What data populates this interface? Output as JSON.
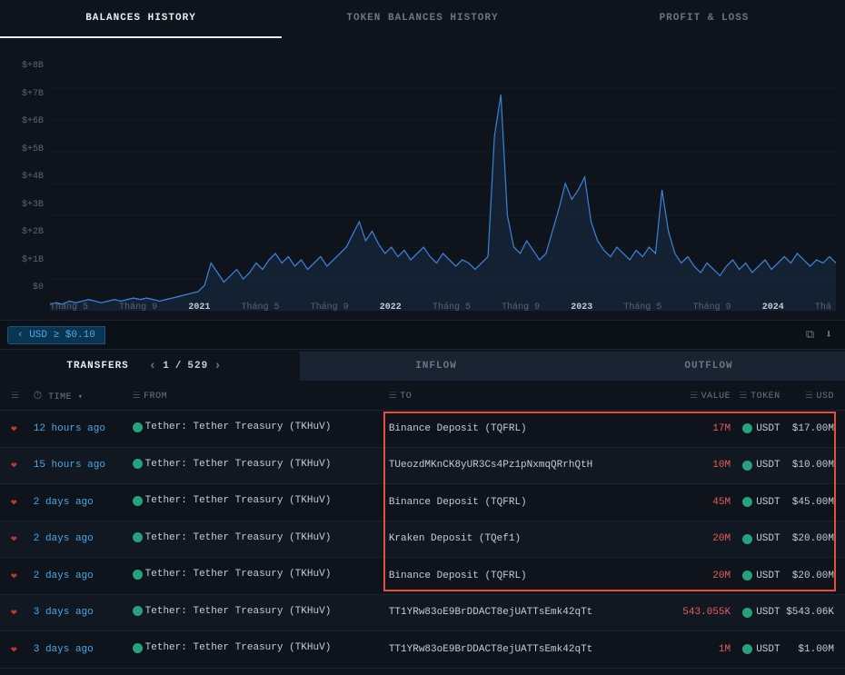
{
  "tabs": {
    "balances_history": "BALANCES HISTORY",
    "token_balances_history": "TOKEN BALANCES HISTORY",
    "profit_loss": "PROFIT & LOSS"
  },
  "chart": {
    "type": "area",
    "y_ticks": [
      "$+8B",
      "$+7B",
      "$+6B",
      "$+5B",
      "$+4B",
      "$+3B",
      "$+2B",
      "$+1B",
      "$0"
    ],
    "x_ticks": [
      {
        "label": "Tháng 5",
        "bold": false
      },
      {
        "label": "Tháng 9",
        "bold": false
      },
      {
        "label": "2021",
        "bold": true
      },
      {
        "label": "Tháng 5",
        "bold": false
      },
      {
        "label": "Tháng 9",
        "bold": false
      },
      {
        "label": "2022",
        "bold": true
      },
      {
        "label": "Tháng 5",
        "bold": false
      },
      {
        "label": "Tháng 9",
        "bold": false
      },
      {
        "label": "2023",
        "bold": true
      },
      {
        "label": "Tháng 5",
        "bold": false
      },
      {
        "label": "Tháng 9",
        "bold": false
      },
      {
        "label": "2024",
        "bold": true
      },
      {
        "label": "Thá",
        "bold": false
      }
    ],
    "line_color": "#3b82d6",
    "fill_color": "#1e3a5f",
    "fill_opacity": 0.35,
    "grid_color": "#1a2332",
    "background_color": "#0f141c",
    "ylim": [
      0,
      8
    ],
    "series": [
      0.2,
      0.25,
      0.2,
      0.3,
      0.25,
      0.3,
      0.35,
      0.3,
      0.25,
      0.3,
      0.35,
      0.3,
      0.35,
      0.4,
      0.35,
      0.4,
      0.35,
      0.3,
      0.35,
      0.4,
      0.45,
      0.5,
      0.55,
      0.6,
      0.8,
      1.5,
      1.2,
      0.9,
      1.1,
      1.3,
      1.0,
      1.2,
      1.5,
      1.3,
      1.6,
      1.8,
      1.5,
      1.7,
      1.4,
      1.6,
      1.3,
      1.5,
      1.7,
      1.4,
      1.6,
      1.8,
      2.0,
      2.4,
      2.8,
      2.2,
      2.5,
      2.1,
      1.8,
      2.0,
      1.7,
      1.9,
      1.6,
      1.8,
      2.0,
      1.7,
      1.5,
      1.8,
      1.6,
      1.4,
      1.6,
      1.5,
      1.3,
      1.5,
      1.7,
      5.5,
      6.8,
      3.0,
      2.0,
      1.8,
      2.2,
      1.9,
      1.6,
      1.8,
      2.5,
      3.2,
      4.0,
      3.5,
      3.8,
      4.2,
      2.8,
      2.2,
      1.9,
      1.7,
      2.0,
      1.8,
      1.6,
      1.9,
      1.7,
      2.0,
      1.8,
      3.8,
      2.5,
      1.8,
      1.5,
      1.7,
      1.4,
      1.2,
      1.5,
      1.3,
      1.1,
      1.4,
      1.6,
      1.3,
      1.5,
      1.2,
      1.4,
      1.6,
      1.3,
      1.5,
      1.7,
      1.5,
      1.8,
      1.6,
      1.4,
      1.6,
      1.5,
      1.7,
      1.5
    ],
    "line_width": 1.2
  },
  "filter": {
    "label": "USD ≥ $0.10"
  },
  "subtabs": {
    "transfers": "TRANSFERS",
    "inflow": "INFLOW",
    "outflow": "OUTFLOW",
    "page_current": "1",
    "page_sep": " / ",
    "page_total": "529"
  },
  "columns": {
    "time": "TIME",
    "from": "FROM",
    "to": "TO",
    "value": "VALUE",
    "token": "TOKEN",
    "usd": "USD"
  },
  "rows": [
    {
      "time": "12 hours ago",
      "from": "Tether: Tether Treasury (TKHuV)",
      "to": "Binance Deposit (TQFRL)",
      "value": "17M",
      "token": "USDT",
      "usd": "$17.00M"
    },
    {
      "time": "15 hours ago",
      "from": "Tether: Tether Treasury (TKHuV)",
      "to": "TUeozdMKnCK8yUR3Cs4Pz1pNxmqQRrhQtH",
      "value": "10M",
      "token": "USDT",
      "usd": "$10.00M"
    },
    {
      "time": "2 days ago",
      "from": "Tether: Tether Treasury (TKHuV)",
      "to": "Binance Deposit (TQFRL)",
      "value": "45M",
      "token": "USDT",
      "usd": "$45.00M"
    },
    {
      "time": "2 days ago",
      "from": "Tether: Tether Treasury (TKHuV)",
      "to": "Kraken Deposit (TQef1)",
      "value": "20M",
      "token": "USDT",
      "usd": "$20.00M"
    },
    {
      "time": "2 days ago",
      "from": "Tether: Tether Treasury (TKHuV)",
      "to": "Binance Deposit (TQFRL)",
      "value": "20M",
      "token": "USDT",
      "usd": "$20.00M"
    },
    {
      "time": "3 days ago",
      "from": "Tether: Tether Treasury (TKHuV)",
      "to": "TT1YRw83oE9BrDDACT8ejUATTsEmk42qTt",
      "value": "543.055K",
      "token": "USDT",
      "usd": "$543.06K"
    },
    {
      "time": "3 days ago",
      "from": "Tether: Tether Treasury (TKHuV)",
      "to": "TT1YRw83oE9BrDDACT8ejUATTsEmk42qTt",
      "value": "1M",
      "token": "USDT",
      "usd": "$1.00M"
    }
  ],
  "highlight": {
    "color": "#e74c3c",
    "row_start": 0,
    "row_end": 4
  }
}
